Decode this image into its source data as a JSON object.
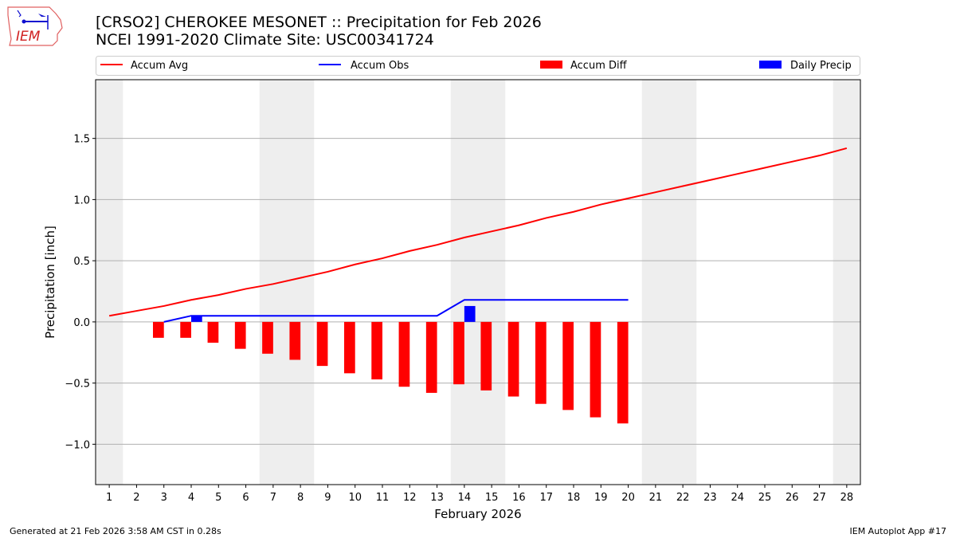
{
  "logo": {
    "text": "IEM"
  },
  "header": {
    "title": "[CRSO2] CHEROKEE MESONET :: Precipitation for Feb 2026",
    "subtitle": "NCEI 1991-2020 Climate Site: USC00341724"
  },
  "footer": {
    "generated": "Generated at 21 Feb 2026 3:58 AM CST in 0.28s",
    "app": "IEM Autoplot App #17"
  },
  "chart_data": {
    "type": "bar",
    "xlabel": "February 2026",
    "ylabel": "Precipitation [inch]",
    "xlim": [
      0.5,
      28.5
    ],
    "ylim": [
      -1.33,
      1.98
    ],
    "yticks": [
      -1.0,
      -0.5,
      0.0,
      0.5,
      1.0,
      1.5
    ],
    "ytick_labels": [
      "−1.0",
      "−0.5",
      "0.0",
      "0.5",
      "1.0",
      "1.5"
    ],
    "xticks": [
      1,
      2,
      3,
      4,
      5,
      6,
      7,
      8,
      9,
      10,
      11,
      12,
      13,
      14,
      15,
      16,
      17,
      18,
      19,
      20,
      21,
      22,
      23,
      24,
      25,
      26,
      27,
      28
    ],
    "grid": "horizontal",
    "weekend_shading": [
      [
        0.5,
        1.5
      ],
      [
        6.5,
        8.5
      ],
      [
        13.5,
        15.5
      ],
      [
        20.5,
        22.5
      ],
      [
        27.5,
        28.5
      ]
    ],
    "legend_placement": "top",
    "series": [
      {
        "name": "Accum Avg",
        "type": "line",
        "color": "#ff0000",
        "x": [
          1,
          2,
          3,
          4,
          5,
          6,
          7,
          8,
          9,
          10,
          11,
          12,
          13,
          14,
          15,
          16,
          17,
          18,
          19,
          20,
          21,
          22,
          23,
          24,
          25,
          26,
          27,
          28
        ],
        "values": [
          0.05,
          0.09,
          0.13,
          0.18,
          0.22,
          0.27,
          0.31,
          0.36,
          0.41,
          0.47,
          0.52,
          0.58,
          0.63,
          0.69,
          0.74,
          0.79,
          0.85,
          0.9,
          0.96,
          1.01,
          1.06,
          1.11,
          1.16,
          1.21,
          1.26,
          1.31,
          1.36,
          1.42
        ]
      },
      {
        "name": "Accum Obs",
        "type": "line",
        "color": "#0000ff",
        "x": [
          3,
          4,
          5,
          6,
          7,
          8,
          9,
          10,
          11,
          12,
          13,
          14,
          15,
          16,
          17,
          18,
          19,
          20
        ],
        "values": [
          0.0,
          0.05,
          0.05,
          0.05,
          0.05,
          0.05,
          0.05,
          0.05,
          0.05,
          0.05,
          0.05,
          0.18,
          0.18,
          0.18,
          0.18,
          0.18,
          0.18,
          0.18
        ]
      },
      {
        "name": "Accum Diff",
        "type": "bar",
        "color": "#ff0000",
        "x": [
          3,
          4,
          5,
          6,
          7,
          8,
          9,
          10,
          11,
          12,
          13,
          14,
          15,
          16,
          17,
          18,
          19,
          20
        ],
        "values": [
          -0.13,
          -0.13,
          -0.17,
          -0.22,
          -0.26,
          -0.31,
          -0.36,
          -0.42,
          -0.47,
          -0.53,
          -0.58,
          -0.51,
          -0.56,
          -0.61,
          -0.67,
          -0.72,
          -0.78,
          -0.83
        ]
      },
      {
        "name": "Daily Precip",
        "type": "bar",
        "color": "#0000ff",
        "x": [
          4,
          14
        ],
        "values": [
          0.05,
          0.13
        ]
      }
    ]
  }
}
